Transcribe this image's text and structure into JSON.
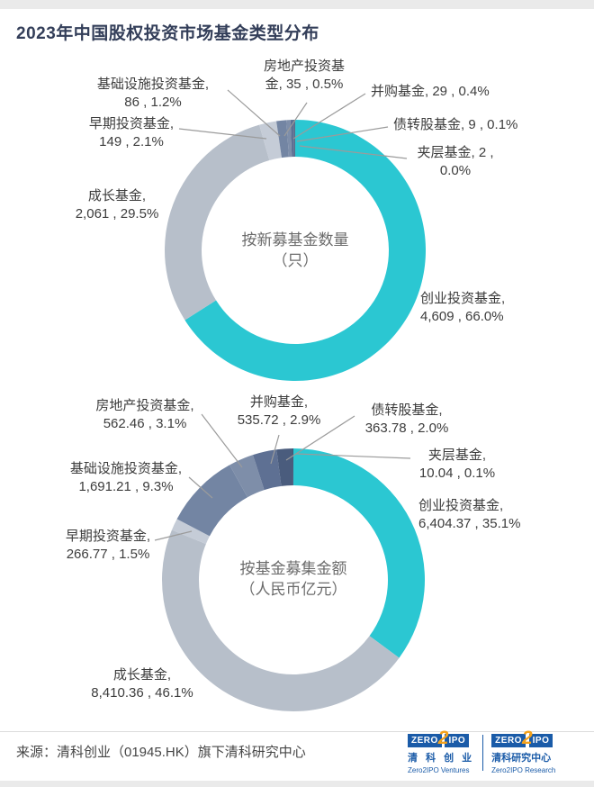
{
  "title": "2023年中国股权投资市场基金类型分布",
  "footer": {
    "source": "来源：清科创业（01945.HK）旗下清科研究中心"
  },
  "logos": [
    {
      "zero": "ZERO",
      "two": "2",
      "ipo": "IPO",
      "cn": "清 科 创 业",
      "en": "Zero2IPO Ventures"
    },
    {
      "zero": "ZERO",
      "two": "2",
      "ipo": "IPO",
      "cn": "清科研究中心",
      "en": "Zero2IPO Research"
    }
  ],
  "chart_data": [
    {
      "type": "pie",
      "subtype": "donut",
      "title": "按新募基金数量（只）",
      "unit": "只",
      "center": {
        "line1": "按新募基金数量",
        "line2": "（只）"
      },
      "slices": [
        {
          "name": "创业投资基金",
          "num": 4609,
          "value": "4,609",
          "pct": "66.0%",
          "color": "#2bc7d2",
          "label_line1": "创业投资基金,",
          "label_line2": "4,609 , 66.0%"
        },
        {
          "name": "成长基金",
          "num": 2061,
          "value": "2,061",
          "pct": "29.5%",
          "color": "#b7bfca",
          "label_line1": "成长基金,",
          "label_line2": "2,061 , 29.5%"
        },
        {
          "name": "早期投资基金",
          "num": 149,
          "value": "149",
          "pct": "2.1%",
          "color": "#c5ccd7",
          "label_line1": "早期投资基金,",
          "label_line2": "149 , 2.1%"
        },
        {
          "name": "基础设施投资基金",
          "num": 86,
          "value": "86",
          "pct": "1.2%",
          "color": "#7385a3",
          "label_line1": "基础设施投资基金,",
          "label_line2": "86 , 1.2%"
        },
        {
          "name": "房地产投资基金",
          "num": 35,
          "value": "35",
          "pct": "0.5%",
          "color": "#7e8ea9",
          "label_line1": "房地产投资基",
          "label_line2": "金, 35 , 0.5%"
        },
        {
          "name": "并购基金",
          "num": 29,
          "value": "29",
          "pct": "0.4%",
          "color": "#5e7093",
          "label_line1": "并购基金, 29 , 0.4%",
          "label_line2": ""
        },
        {
          "name": "债转股基金",
          "num": 9,
          "value": "9",
          "pct": "0.1%",
          "color": "#4a5c7d",
          "label_line1": "债转股基金, 9 , 0.1%",
          "label_line2": ""
        },
        {
          "name": "夹层基金",
          "num": 2,
          "value": "2",
          "pct": "0.0%",
          "color": "#39486a",
          "label_line1": "夹层基金, 2 ,",
          "label_line2": "0.0%"
        }
      ]
    },
    {
      "type": "pie",
      "subtype": "donut",
      "title": "按基金募集金额（人民币亿元）",
      "unit": "人民币亿元",
      "center": {
        "line1": "按基金募集金额",
        "line2": "（人民币亿元）"
      },
      "slices": [
        {
          "name": "创业投资基金",
          "num": 6404.37,
          "value": "6,404.37",
          "pct": "35.1%",
          "color": "#2bc7d2",
          "label_line1": "创业投资基金,",
          "label_line2": "6,404.37 , 35.1%"
        },
        {
          "name": "成长基金",
          "num": 8410.36,
          "value": "8,410.36",
          "pct": "46.1%",
          "color": "#b7bfca",
          "label_line1": "成长基金,",
          "label_line2": "8,410.36 , 46.1%"
        },
        {
          "name": "早期投资基金",
          "num": 266.77,
          "value": "266.77",
          "pct": "1.5%",
          "color": "#c5ccd7",
          "label_line1": "早期投资基金,",
          "label_line2": "266.77 , 1.5%"
        },
        {
          "name": "基础设施投资基金",
          "num": 1691.21,
          "value": "1,691.21",
          "pct": "9.3%",
          "color": "#7385a3",
          "label_line1": "基础设施投资基金,",
          "label_line2": "1,691.21 , 9.3%"
        },
        {
          "name": "房地产投资基金",
          "num": 562.46,
          "value": "562.46",
          "pct": "3.1%",
          "color": "#7e8ea9",
          "label_line1": "房地产投资基金,",
          "label_line2": "562.46 , 3.1%"
        },
        {
          "name": "并购基金",
          "num": 535.72,
          "value": "535.72",
          "pct": "2.9%",
          "color": "#5e7093",
          "label_line1": "并购基金,",
          "label_line2": "535.72 , 2.9%"
        },
        {
          "name": "债转股基金",
          "num": 363.78,
          "value": "363.78",
          "pct": "2.0%",
          "color": "#4a5c7d",
          "label_line1": "债转股基金,",
          "label_line2": "363.78 , 2.0%"
        },
        {
          "name": "夹层基金",
          "num": 10.04,
          "value": "10.04",
          "pct": "0.1%",
          "color": "#39486a",
          "label_line1": "夹层基金,",
          "label_line2": "10.04 , 0.1%"
        }
      ]
    }
  ]
}
